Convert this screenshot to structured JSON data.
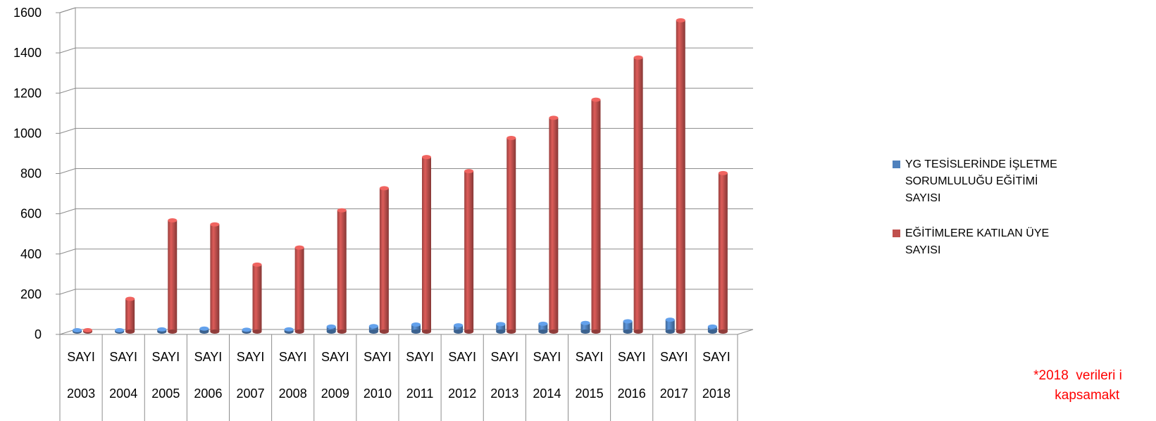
{
  "chart_data": {
    "type": "bar",
    "title": "",
    "xlabel": "",
    "ylabel": "",
    "ylim": [
      0,
      1600
    ],
    "yticks": [
      "0",
      "200",
      "400",
      "600",
      "800",
      "1000",
      "1200",
      "1400",
      "1600"
    ],
    "grid": true,
    "legend_position": "right",
    "categories_top": [
      "SAYI",
      "SAYI",
      "SAYI",
      "SAYI",
      "SAYI",
      "SAYI",
      "SAYI",
      "SAYI",
      "SAYI",
      "SAYI",
      "SAYI",
      "SAYI",
      "SAYI",
      "SAYI",
      "SAYI",
      "SAYI"
    ],
    "categories": [
      "2003",
      "2004",
      "2005",
      "2006",
      "2007",
      "2008",
      "2009",
      "2010",
      "2011",
      "2012",
      "2013",
      "2014",
      "2015",
      "2016",
      "2017",
      "2018"
    ],
    "series": [
      {
        "name": "YG TESİSLERİNDE İŞLETME SORUMLULUĞU EĞİTİMİ SAYISI",
        "color": "#4f81bd",
        "values": [
          2,
          8,
          18,
          22,
          16,
          18,
          32,
          34,
          42,
          38,
          44,
          46,
          50,
          58,
          66,
          32
        ]
      },
      {
        "name": "EĞİTİMLERE KATILAN ÜYE SAYISI",
        "color": "#c0504d",
        "values": [
          5,
          170,
          560,
          540,
          340,
          425,
          610,
          720,
          875,
          805,
          970,
          1070,
          1160,
          1370,
          1555,
          795
        ]
      }
    ],
    "legend_lines": [
      [
        "YG TESİSLERİNDE İŞLETME",
        "SORUMLULUĞU EĞİTİMİ",
        "SAYISI"
      ],
      [
        "EĞİTİMLERE KATILAN ÜYE",
        "SAYISI"
      ]
    ]
  },
  "note": {
    "text": "*2018  verileri i\n     kapsamakt",
    "color": "#ff0000"
  }
}
